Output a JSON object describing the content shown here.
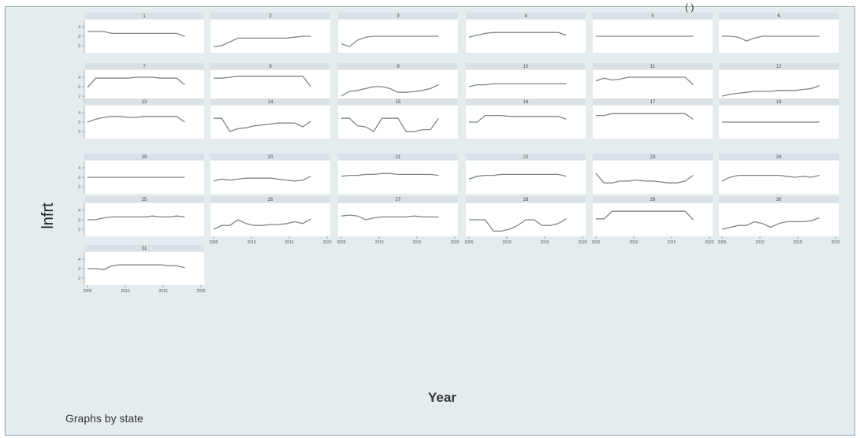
{
  "top_note": "( )",
  "chart_data": {
    "type": "line",
    "by_label": "Graphs by state",
    "xlabel": "Year",
    "ylabel": "lnfrt",
    "x": [
      2006,
      2007,
      2008,
      2009,
      2010,
      2011,
      2012,
      2013,
      2014,
      2015,
      2016,
      2017,
      2018
    ],
    "xlim": [
      2006,
      2020
    ],
    "xticks": [
      2005,
      2010,
      2015,
      2020
    ],
    "ylim": [
      1.5,
      4.5
    ],
    "yticks": [
      2,
      3,
      4
    ],
    "series": [
      {
        "name": "1",
        "values": [
          3.5,
          3.5,
          3.5,
          3.3,
          3.3,
          3.3,
          3.3,
          3.3,
          3.3,
          3.3,
          3.3,
          3.3,
          3.0
        ]
      },
      {
        "name": "2",
        "values": [
          1.9,
          2.0,
          2.4,
          2.8,
          2.8,
          2.8,
          2.8,
          2.8,
          2.8,
          2.8,
          2.9,
          3.0,
          3.0
        ]
      },
      {
        "name": "3",
        "values": [
          2.2,
          1.9,
          2.6,
          2.9,
          3.0,
          3.0,
          3.0,
          3.0,
          3.0,
          3.0,
          3.0,
          3.0,
          3.0
        ]
      },
      {
        "name": "4",
        "values": [
          2.9,
          3.1,
          3.3,
          3.4,
          3.4,
          3.4,
          3.4,
          3.4,
          3.4,
          3.4,
          3.4,
          3.4,
          3.1
        ]
      },
      {
        "name": "5",
        "values": [
          3.0,
          3.0,
          3.0,
          3.0,
          3.0,
          3.0,
          3.0,
          3.0,
          3.0,
          3.0,
          3.0,
          3.0,
          3.0
        ]
      },
      {
        "name": "6",
        "values": [
          3.0,
          3.0,
          2.9,
          2.5,
          2.8,
          3.0,
          3.0,
          3.0,
          3.0,
          3.0,
          3.0,
          3.0,
          3.0
        ]
      },
      {
        "name": "7",
        "values": [
          2.9,
          3.9,
          3.9,
          3.9,
          3.9,
          3.9,
          4.0,
          4.0,
          4.0,
          3.9,
          3.9,
          3.9,
          3.2
        ]
      },
      {
        "name": "8",
        "values": [
          3.9,
          3.9,
          4.0,
          4.1,
          4.1,
          4.1,
          4.1,
          4.1,
          4.1,
          4.1,
          4.1,
          4.1,
          3.0
        ]
      },
      {
        "name": "9",
        "values": [
          2.0,
          2.5,
          2.6,
          2.8,
          3.0,
          3.0,
          2.8,
          2.4,
          2.4,
          2.5,
          2.6,
          2.8,
          3.2
        ]
      },
      {
        "name": "10",
        "values": [
          3.0,
          3.2,
          3.2,
          3.3,
          3.3,
          3.3,
          3.3,
          3.3,
          3.3,
          3.3,
          3.3,
          3.3,
          3.3
        ]
      },
      {
        "name": "11",
        "values": [
          3.6,
          3.9,
          3.7,
          3.8,
          4.0,
          4.0,
          4.0,
          4.0,
          4.0,
          4.0,
          4.0,
          4.0,
          3.2
        ]
      },
      {
        "name": "12",
        "values": [
          2.0,
          2.2,
          2.3,
          2.4,
          2.5,
          2.5,
          2.5,
          2.6,
          2.6,
          2.6,
          2.7,
          2.8,
          3.1
        ]
      },
      {
        "name": "13",
        "values": [
          3.0,
          3.3,
          3.5,
          3.6,
          3.6,
          3.5,
          3.5,
          3.6,
          3.6,
          3.6,
          3.6,
          3.6,
          3.0
        ]
      },
      {
        "name": "14",
        "values": [
          3.4,
          3.4,
          2.0,
          2.3,
          2.4,
          2.6,
          2.7,
          2.8,
          2.9,
          2.9,
          2.9,
          2.5,
          3.1
        ]
      },
      {
        "name": "15",
        "values": [
          3.4,
          3.4,
          2.6,
          2.5,
          2.0,
          3.4,
          3.4,
          3.4,
          2.0,
          2.0,
          2.2,
          2.2,
          3.4
        ]
      },
      {
        "name": "16",
        "values": [
          3.0,
          3.0,
          3.7,
          3.7,
          3.7,
          3.6,
          3.6,
          3.6,
          3.6,
          3.6,
          3.6,
          3.6,
          3.3
        ]
      },
      {
        "name": "17",
        "values": [
          3.7,
          3.7,
          3.9,
          3.9,
          3.9,
          3.9,
          3.9,
          3.9,
          3.9,
          3.9,
          3.9,
          3.9,
          3.3
        ]
      },
      {
        "name": "18",
        "values": [
          3.0,
          3.0,
          3.0,
          3.0,
          3.0,
          3.0,
          3.0,
          3.0,
          3.0,
          3.0,
          3.0,
          3.0,
          3.0
        ]
      },
      {
        "name": "19",
        "values": [
          3.0,
          3.0,
          3.0,
          3.0,
          3.0,
          3.0,
          3.0,
          3.0,
          3.0,
          3.0,
          3.0,
          3.0,
          3.0
        ]
      },
      {
        "name": "20",
        "values": [
          2.6,
          2.8,
          2.7,
          2.8,
          2.9,
          2.9,
          2.9,
          2.9,
          2.8,
          2.7,
          2.6,
          2.7,
          3.1
        ]
      },
      {
        "name": "21",
        "values": [
          3.1,
          3.2,
          3.2,
          3.3,
          3.3,
          3.4,
          3.4,
          3.3,
          3.3,
          3.3,
          3.3,
          3.3,
          3.2
        ]
      },
      {
        "name": "22",
        "values": [
          2.8,
          3.1,
          3.2,
          3.2,
          3.3,
          3.3,
          3.3,
          3.3,
          3.3,
          3.3,
          3.3,
          3.3,
          3.1
        ]
      },
      {
        "name": "23",
        "values": [
          3.4,
          2.4,
          2.4,
          2.6,
          2.6,
          2.7,
          2.6,
          2.6,
          2.5,
          2.4,
          2.4,
          2.6,
          3.2
        ]
      },
      {
        "name": "24",
        "values": [
          2.6,
          3.0,
          3.2,
          3.2,
          3.2,
          3.2,
          3.2,
          3.2,
          3.1,
          3.0,
          3.1,
          3.0,
          3.2
        ]
      },
      {
        "name": "25",
        "values": [
          3.0,
          3.0,
          3.2,
          3.3,
          3.3,
          3.3,
          3.3,
          3.3,
          3.4,
          3.3,
          3.3,
          3.4,
          3.3
        ]
      },
      {
        "name": "26",
        "values": [
          2.0,
          2.4,
          2.4,
          3.0,
          2.6,
          2.4,
          2.4,
          2.5,
          2.5,
          2.6,
          2.8,
          2.6,
          3.1
        ]
      },
      {
        "name": "27",
        "values": [
          3.4,
          3.5,
          3.4,
          3.0,
          3.2,
          3.3,
          3.3,
          3.3,
          3.3,
          3.4,
          3.3,
          3.3,
          3.3
        ]
      },
      {
        "name": "28",
        "values": [
          3.0,
          3.0,
          3.0,
          1.8,
          1.8,
          2.0,
          2.4,
          3.0,
          3.0,
          2.4,
          2.4,
          2.6,
          3.1
        ]
      },
      {
        "name": "29",
        "values": [
          3.1,
          3.1,
          3.9,
          3.9,
          3.9,
          3.9,
          3.9,
          3.9,
          3.9,
          3.9,
          3.9,
          3.9,
          3.0
        ]
      },
      {
        "name": "30",
        "values": [
          2.0,
          2.2,
          2.4,
          2.4,
          2.8,
          2.6,
          2.2,
          2.6,
          2.8,
          2.8,
          2.8,
          2.9,
          3.2
        ]
      },
      {
        "name": "31",
        "values": [
          3.0,
          3.0,
          2.9,
          3.3,
          3.4,
          3.4,
          3.4,
          3.4,
          3.4,
          3.4,
          3.3,
          3.3,
          3.1
        ]
      }
    ]
  }
}
